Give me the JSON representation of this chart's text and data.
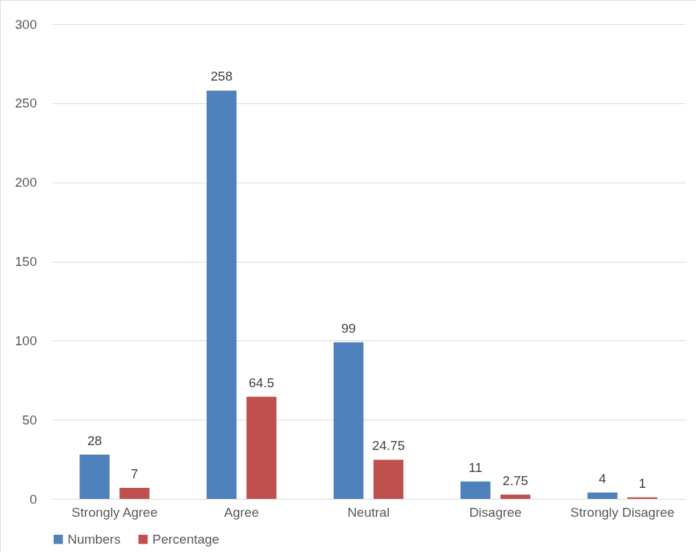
{
  "chart_data": {
    "type": "bar",
    "categories": [
      "Strongly Agree",
      "Agree",
      "Neutral",
      "Disagree",
      "Strongly Disagree"
    ],
    "series": [
      {
        "name": "Numbers",
        "color": "#4f81bd",
        "values": [
          28,
          258,
          99,
          11,
          4
        ]
      },
      {
        "name": "Percentage",
        "color": "#c0504d",
        "values": [
          7,
          64.5,
          24.75,
          2.75,
          1
        ]
      }
    ],
    "ylim": [
      0,
      300
    ],
    "yticks": [
      0,
      50,
      100,
      150,
      200,
      250,
      300
    ],
    "grid": "y",
    "legend": "bottom",
    "data_labels": true
  }
}
